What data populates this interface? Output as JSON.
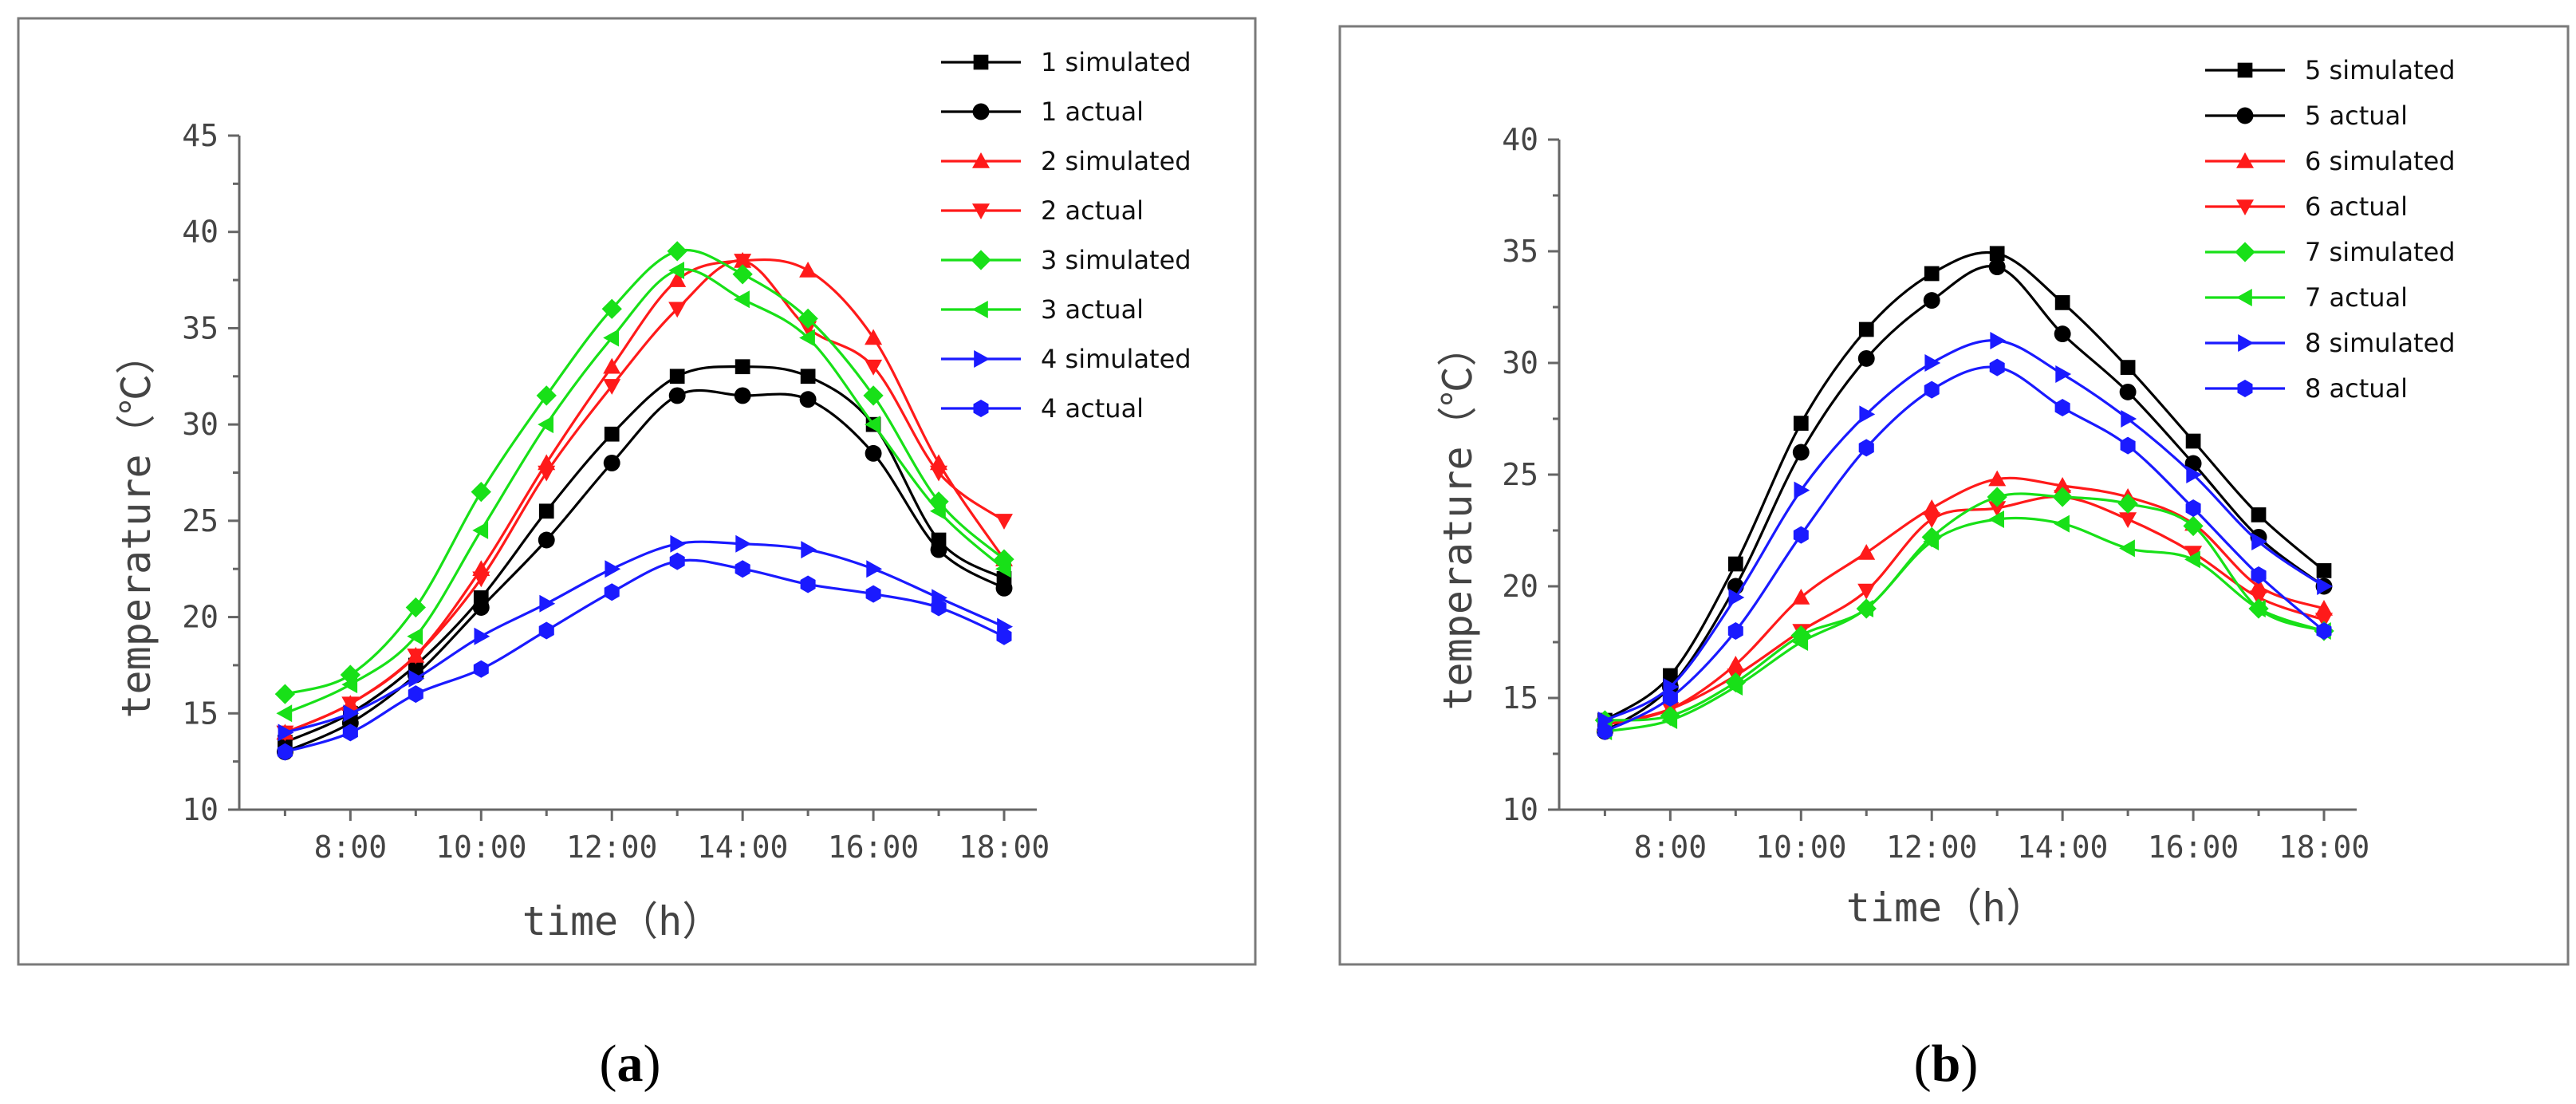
{
  "colors": {
    "black": "#000000",
    "red": "#ff1a1a",
    "green": "#18e018",
    "blue": "#1a1aff"
  },
  "chart_data": [
    {
      "type": "line",
      "panel": "a",
      "caption": "a",
      "xlabel": "time（h）",
      "ylabel": "temperature（℃）",
      "xlim": [
        6.3,
        18.5
      ],
      "ylim": [
        10,
        45
      ],
      "x_ticks": [
        8,
        10,
        12,
        14,
        16,
        18
      ],
      "x_tick_labels": [
        "8:00",
        "10:00",
        "12:00",
        "14:00",
        "16:00",
        "18:00"
      ],
      "y_ticks": [
        10,
        15,
        20,
        25,
        30,
        35,
        40,
        45
      ],
      "y_tick_labels": [
        "10",
        "15",
        "20",
        "25",
        "30",
        "35",
        "40",
        "45"
      ],
      "legend_position": "top-right",
      "x": [
        7,
        8,
        9,
        10,
        11,
        12,
        13,
        14,
        15,
        16,
        17,
        18
      ],
      "series": [
        {
          "name": "1 simulated",
          "color": "#000000",
          "marker": "square",
          "values": [
            13.5,
            15.0,
            17.5,
            21.0,
            25.5,
            29.5,
            32.5,
            33.0,
            32.5,
            30.0,
            24.0,
            22.0
          ]
        },
        {
          "name": "1 actual",
          "color": "#000000",
          "marker": "circle",
          "values": [
            13.0,
            14.5,
            17.0,
            20.5,
            24.0,
            28.0,
            31.5,
            31.5,
            31.3,
            28.5,
            23.5,
            21.5
          ]
        },
        {
          "name": "2 simulated",
          "color": "#ff1a1a",
          "marker": "triangle-up",
          "values": [
            14.0,
            15.5,
            18.0,
            22.5,
            28.0,
            33.0,
            37.5,
            38.5,
            38.0,
            34.5,
            28.0,
            23.0
          ]
        },
        {
          "name": "2 actual",
          "color": "#ff1a1a",
          "marker": "triangle-down",
          "values": [
            14.0,
            15.5,
            18.0,
            22.0,
            27.5,
            32.0,
            36.0,
            38.5,
            35.0,
            33.0,
            27.5,
            25.0
          ]
        },
        {
          "name": "3 simulated",
          "color": "#18e018",
          "marker": "diamond",
          "values": [
            16.0,
            17.0,
            20.5,
            26.5,
            31.5,
            36.0,
            39.0,
            37.8,
            35.5,
            31.5,
            26.0,
            23.0
          ]
        },
        {
          "name": "3 actual",
          "color": "#18e018",
          "marker": "triangle-left",
          "values": [
            15.0,
            16.5,
            19.0,
            24.5,
            30.0,
            34.5,
            38.0,
            36.5,
            34.5,
            30.0,
            25.5,
            22.5
          ]
        },
        {
          "name": "4 simulated",
          "color": "#1a1aff",
          "marker": "triangle-right",
          "values": [
            14.0,
            15.0,
            16.8,
            19.0,
            20.7,
            22.5,
            23.8,
            23.8,
            23.5,
            22.5,
            21.0,
            19.5
          ]
        },
        {
          "name": "4 actual",
          "color": "#1a1aff",
          "marker": "hexagon",
          "values": [
            13.0,
            14.0,
            16.0,
            17.3,
            19.3,
            21.3,
            22.9,
            22.5,
            21.7,
            21.2,
            20.5,
            19.0
          ]
        }
      ]
    },
    {
      "type": "line",
      "panel": "b",
      "caption": "b",
      "xlabel": "time（h）",
      "ylabel": "temperature（℃）",
      "xlim": [
        6.3,
        18.5
      ],
      "ylim": [
        10,
        40
      ],
      "x_ticks": [
        8,
        10,
        12,
        14,
        16,
        18
      ],
      "x_tick_labels": [
        "8:00",
        "10:00",
        "12:00",
        "14:00",
        "16:00",
        "18:00"
      ],
      "y_ticks": [
        10,
        15,
        20,
        25,
        30,
        35,
        40
      ],
      "y_tick_labels": [
        "10",
        "15",
        "20",
        "25",
        "30",
        "35",
        "40"
      ],
      "legend_position": "top-right",
      "x": [
        7,
        8,
        9,
        10,
        11,
        12,
        13,
        14,
        15,
        16,
        17,
        18
      ],
      "series": [
        {
          "name": "5 simulated",
          "color": "#000000",
          "marker": "square",
          "values": [
            14.0,
            16.0,
            21.0,
            27.3,
            31.5,
            34.0,
            34.9,
            32.7,
            29.8,
            26.5,
            23.2,
            20.7
          ]
        },
        {
          "name": "5 actual",
          "color": "#000000",
          "marker": "circle",
          "values": [
            13.5,
            15.5,
            20.0,
            26.0,
            30.2,
            32.8,
            34.3,
            31.3,
            28.7,
            25.5,
            22.2,
            20.0
          ]
        },
        {
          "name": "6 simulated",
          "color": "#ff1a1a",
          "marker": "triangle-up",
          "values": [
            13.8,
            14.5,
            16.5,
            19.5,
            21.5,
            23.5,
            24.8,
            24.5,
            24.0,
            22.8,
            20.0,
            19.0
          ]
        },
        {
          "name": "6 actual",
          "color": "#ff1a1a",
          "marker": "triangle-down",
          "values": [
            13.8,
            14.5,
            16.0,
            18.0,
            19.8,
            23.0,
            23.5,
            24.0,
            23.0,
            21.5,
            19.5,
            18.5
          ]
        },
        {
          "name": "7 simulated",
          "color": "#18e018",
          "marker": "diamond",
          "values": [
            14.0,
            14.2,
            15.7,
            17.8,
            19.0,
            22.2,
            24.0,
            24.0,
            23.7,
            22.7,
            19.0,
            18.0
          ]
        },
        {
          "name": "7 actual",
          "color": "#18e018",
          "marker": "triangle-left",
          "values": [
            13.5,
            14.0,
            15.5,
            17.5,
            19.0,
            22.0,
            23.0,
            22.8,
            21.7,
            21.2,
            19.0,
            18.0
          ]
        },
        {
          "name": "8 simulated",
          "color": "#1a1aff",
          "marker": "triangle-right",
          "values": [
            14.0,
            15.5,
            19.5,
            24.3,
            27.7,
            30.0,
            31.0,
            29.5,
            27.5,
            25.0,
            22.0,
            20.0
          ]
        },
        {
          "name": "8 actual",
          "color": "#1a1aff",
          "marker": "hexagon",
          "values": [
            13.5,
            15.0,
            18.0,
            22.3,
            26.2,
            28.8,
            29.8,
            28.0,
            26.3,
            23.5,
            20.5,
            18.0
          ]
        }
      ]
    }
  ]
}
